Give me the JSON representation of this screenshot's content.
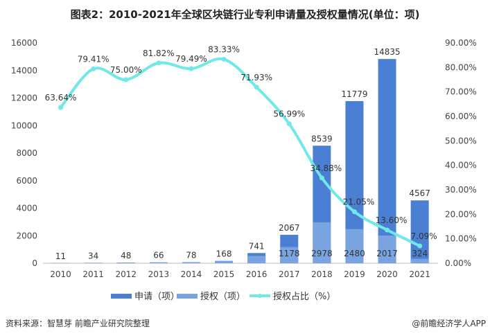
{
  "title": "图表2：2010-2021年全球区块链行业专利申请量及授权量情况(单位：项)",
  "source": "资料来源：智慧芽 前瞻产业研究院整理",
  "brand": "@前瞻经济学人APP",
  "colors": {
    "application": "#4a7fd4",
    "grant": "#7aa4e0",
    "ratio": "#6ee8e8"
  },
  "chart_data": {
    "type": "bar+line",
    "categories": [
      "2010",
      "2011",
      "2012",
      "2013",
      "2014",
      "2015",
      "2016",
      "2017",
      "2018",
      "2019",
      "2020",
      "2021"
    ],
    "series": [
      {
        "name": "申请（项）",
        "type": "bar",
        "axis": "left",
        "values": [
          11,
          34,
          48,
          66,
          78,
          168,
          741,
          2067,
          8539,
          11779,
          14835,
          4567
        ]
      },
      {
        "name": "授权（项）",
        "type": "bar",
        "axis": "left",
        "values": [
          7,
          27,
          36,
          54,
          62,
          140,
          533,
          1178,
          2978,
          2480,
          2017,
          324
        ],
        "labeled_from_index": 7
      },
      {
        "name": "授权占比（%）",
        "type": "line",
        "axis": "right",
        "values": [
          63.64,
          79.41,
          75.0,
          81.82,
          79.49,
          83.33,
          71.93,
          56.99,
          34.88,
          21.05,
          13.6,
          7.09
        ]
      }
    ],
    "left_axis": {
      "range": [
        0,
        16000
      ],
      "ticks": [
        "0",
        "2000",
        "4000",
        "6000",
        "8000",
        "10000",
        "12000",
        "14000",
        "16000"
      ]
    },
    "right_axis": {
      "range": [
        0,
        90
      ],
      "ticks": [
        "0.00%",
        "10.00%",
        "20.00%",
        "30.00%",
        "40.00%",
        "50.00%",
        "60.00%",
        "70.00%",
        "80.00%",
        "90.00%"
      ]
    },
    "grid": false,
    "legend_position": "bottom"
  }
}
